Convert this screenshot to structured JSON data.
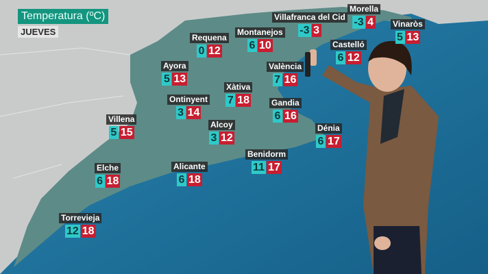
{
  "header": {
    "title": "Temperatura (ºC)",
    "day": "JUEVES"
  },
  "colors": {
    "min_box": "#2fc9c9",
    "max_box": "#c81e31",
    "title_bg": "#14957f",
    "sea": "#1d6f9a",
    "land_region": "#5f8c88"
  },
  "cities": [
    {
      "name": "Requena",
      "min": "0",
      "max": "12"
    },
    {
      "name": "Montanejos",
      "min": "6",
      "max": "10"
    },
    {
      "name": "Villafranca del Cid",
      "min": "-3",
      "max": "3"
    },
    {
      "name": "Morella",
      "min": "-3",
      "max": "4"
    },
    {
      "name": "Vinaròs",
      "min": "5",
      "max": "13"
    },
    {
      "name": "Castelló",
      "min": "6",
      "max": "12"
    },
    {
      "name": "València",
      "min": "7",
      "max": "16"
    },
    {
      "name": "Ayora",
      "min": "5",
      "max": "13"
    },
    {
      "name": "Xàtiva",
      "min": "7",
      "max": "18"
    },
    {
      "name": "Ontinyent",
      "min": "3",
      "max": "14"
    },
    {
      "name": "Gandia",
      "min": "6",
      "max": "16"
    },
    {
      "name": "Villena",
      "min": "5",
      "max": "15"
    },
    {
      "name": "Alcoy",
      "min": "3",
      "max": "12"
    },
    {
      "name": "Dénia",
      "min": "6",
      "max": "17"
    },
    {
      "name": "Benidorm",
      "min": "11",
      "max": "17"
    },
    {
      "name": "Elche",
      "min": "6",
      "max": "18"
    },
    {
      "name": "Alicante",
      "min": "6",
      "max": "18"
    },
    {
      "name": "Torrevieja",
      "min": "12",
      "max": "18"
    }
  ]
}
